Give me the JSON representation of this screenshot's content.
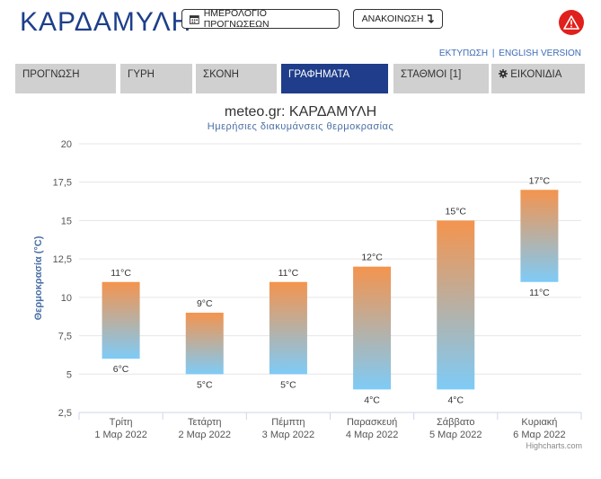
{
  "header": {
    "site_title": "ΚΑΡΔΑΜΥΛΗ",
    "calendar_button": "ΗΜΕΡΟΛΟΓΙΟ ΠΡΟΓΝΩΣΕΩΝ",
    "announce_button": "ΑΝΑΚΟΙΝΩΣΗ",
    "print_link": "ΕΚΤΥΠΩΣΗ",
    "separator": "|",
    "english_link": "ENGLISH VERSION",
    "warning_color": "#e0201c"
  },
  "tabs": [
    {
      "label": "ΠΡΟΓΝΩΣΗ",
      "active": false
    },
    {
      "label": "ΓΥΡΗ",
      "active": false
    },
    {
      "label": "ΣΚΟΝΗ",
      "active": false
    },
    {
      "label": "ΓΡΑΦΗΜΑΤΑ",
      "active": true
    },
    {
      "label": "ΣΤΑΘΜΟΙ [1]",
      "active": false
    },
    {
      "label": "ΕΙΚΟΝΙΔΙΑ",
      "active": false,
      "icon": "gear-icon"
    }
  ],
  "chart_data": {
    "type": "bar",
    "subtype": "columnrange",
    "title": "meteo.gr: ΚΑΡΔΑΜΥΛΗ",
    "subtitle": "Ημερήσιες διακυμάνσεις θερμοκρασίας",
    "ylabel": "Θερμοκρασία (°C)",
    "ylim": [
      2.5,
      20
    ],
    "yticks": [
      "2,5",
      "5",
      "7,5",
      "10",
      "12,5",
      "15",
      "17,5",
      "20"
    ],
    "ytick_values": [
      2.5,
      5,
      7.5,
      10,
      12.5,
      15,
      17.5,
      20
    ],
    "categories": [
      {
        "day": "Τρίτη",
        "date": "1 Μαρ 2022"
      },
      {
        "day": "Τετάρτη",
        "date": "2 Μαρ 2022"
      },
      {
        "day": "Πέμπτη",
        "date": "3 Μαρ 2022"
      },
      {
        "day": "Παρασκευή",
        "date": "4 Μαρ 2022"
      },
      {
        "day": "Σάββατο",
        "date": "5 Μαρ 2022"
      },
      {
        "day": "Κυριακή",
        "date": "6 Μαρ 2022"
      }
    ],
    "low": [
      6,
      5,
      5,
      4,
      4,
      11
    ],
    "high": [
      11,
      9,
      11,
      12,
      15,
      17
    ],
    "unit": "°C",
    "grid": true,
    "gradient_top_color": "#f4944e",
    "gradient_bottom_color": "#7ecbf7",
    "credits": "Highcharts.com"
  }
}
